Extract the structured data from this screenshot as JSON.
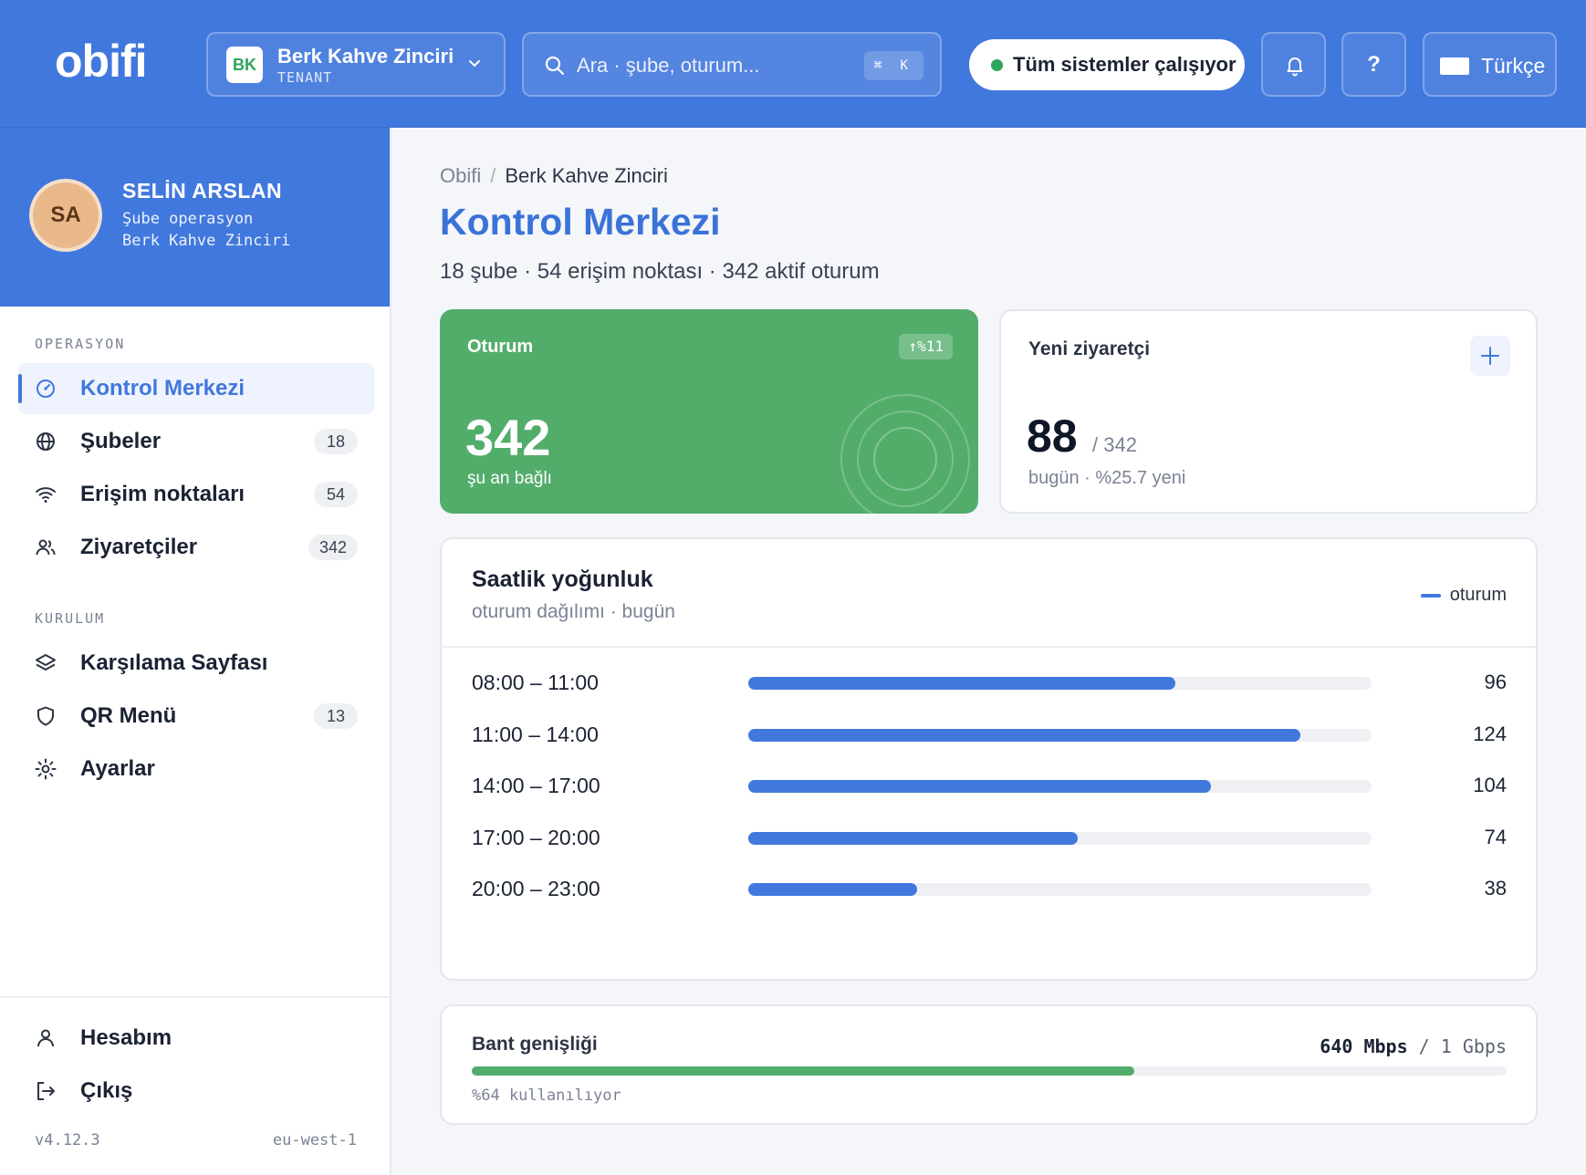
{
  "header": {
    "logo": "obifi",
    "tenant": {
      "initials": "BK",
      "name": "Berk Kahve Zinciri",
      "label": "TENANT"
    },
    "search": {
      "placeholder": "Ara · şube, oturum...",
      "shortcut": "⌘ K"
    },
    "status": {
      "text": "Tüm sistemler çalışıyor",
      "color": "#2fa45c"
    },
    "language": "Türkçe"
  },
  "profile": {
    "initials": "SA",
    "name": "SELİN ARSLAN",
    "role": "Şube operasyon",
    "org": "Berk Kahve Zinciri"
  },
  "sidebar": {
    "sections": [
      {
        "title": "OPERASYON"
      },
      {
        "title": "KURULUM"
      }
    ],
    "items": [
      {
        "label": "Kontrol Merkezi",
        "icon": "gauge-icon",
        "active": true
      },
      {
        "label": "Şubeler",
        "icon": "globe-icon",
        "badge": "18"
      },
      {
        "label": "Erişim noktaları",
        "icon": "wifi-icon",
        "badge": "54"
      },
      {
        "label": "Ziyaretçiler",
        "icon": "users-icon",
        "badge": "342"
      },
      {
        "label": "Karşılama Sayfası",
        "icon": "layers-icon"
      },
      {
        "label": "QR Menü",
        "icon": "shield-icon",
        "badge": "13"
      },
      {
        "label": "Ayarlar",
        "icon": "gear-icon"
      }
    ],
    "footer": [
      {
        "label": "Hesabım",
        "icon": "user-icon"
      },
      {
        "label": "Çıkış",
        "icon": "logout-icon"
      }
    ],
    "version": "v4.12.3",
    "region": "eu-west-1"
  },
  "main": {
    "breadcrumb": [
      "Obifi",
      "Berk Kahve Zinciri"
    ],
    "title": "Kontrol Merkezi",
    "subtitle": "18 şube · 54 erişim noktası · 342 aktif oturum",
    "kpi_sessions": {
      "title": "Oturum",
      "delta": "↑%11",
      "value": "342",
      "caption": "şu an bağlı"
    },
    "kpi_visitors": {
      "title": "Yeni ziyaretçi",
      "value": "88",
      "of": "/ 342",
      "caption": "bugün · %25.7 yeni"
    },
    "hourly": {
      "title": "Saatlik yoğunluk",
      "subtitle": "oturum dağılımı · bugün",
      "legend": "oturum",
      "rows": [
        {
          "label": "08:00 – 11:00",
          "value": "96"
        },
        {
          "label": "11:00 – 14:00",
          "value": "124"
        },
        {
          "label": "14:00 – 17:00",
          "value": "104"
        },
        {
          "label": "17:00 – 20:00",
          "value": "74"
        },
        {
          "label": "20:00 – 23:00",
          "value": "38"
        }
      ],
      "scale_max": 140
    },
    "bandwidth": {
      "title": "Bant genişliği",
      "used": "640 Mbps",
      "total": "/ 1 Gbps",
      "caption": "%64 kullanılıyor",
      "fraction": 0.64
    }
  },
  "colors": {
    "primary": "#4178dd",
    "success": "#52ad6b"
  }
}
